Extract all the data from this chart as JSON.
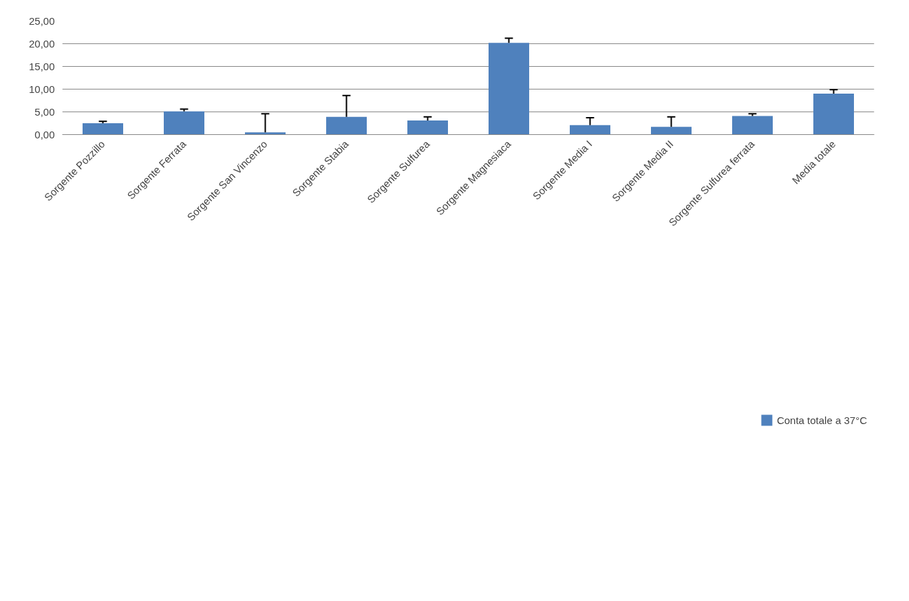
{
  "chart_data": {
    "type": "bar",
    "categories": [
      "Sorgente Pozzillo",
      "Sorgente Ferrata",
      "Sorgente San Vincenzo",
      "Sorgente Stabia",
      "Sorgente Sulfurea",
      "Sorgente Magnesiaca",
      "Sorgente Media I",
      "Sorgente Media II",
      "Sorgente Sulfurea ferrata",
      "Media totale"
    ],
    "series": [
      {
        "name": "Conta totale a 37°C",
        "color": "#4f81bd",
        "values": [
          2.5,
          5.1,
          0.5,
          3.9,
          3.1,
          20.2,
          2.1,
          1.7,
          4.1,
          9.0
        ],
        "errors": [
          [
            2.5,
            2.9
          ],
          [
            5.1,
            5.6
          ],
          [
            0.5,
            4.6
          ],
          [
            3.9,
            8.6
          ],
          [
            3.1,
            3.9
          ],
          [
            20.2,
            21.2
          ],
          [
            2.1,
            3.7
          ],
          [
            1.7,
            3.9
          ],
          [
            4.1,
            4.6
          ],
          [
            9.0,
            9.9
          ]
        ]
      }
    ],
    "ylim": [
      0,
      25
    ],
    "yticks": [
      {
        "value": 0,
        "label": "0,00"
      },
      {
        "value": 5,
        "label": "5,00"
      },
      {
        "value": 10,
        "label": "10,00"
      },
      {
        "value": 15,
        "label": "15,00"
      },
      {
        "value": 20,
        "label": "20,00"
      },
      {
        "value": 25,
        "label": "25,00"
      }
    ],
    "grid": "y",
    "legend": "bottom"
  }
}
